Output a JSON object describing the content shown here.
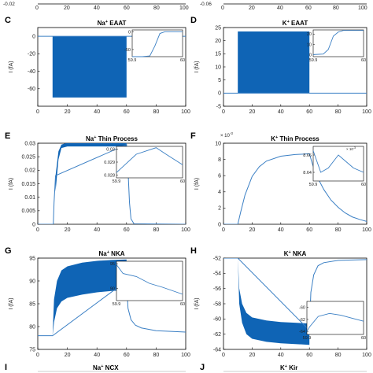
{
  "figure": {
    "top_ticks_left": [
      "0",
      "20",
      "40",
      "60",
      "80",
      "100"
    ],
    "top_ticks_right": [
      "0",
      "20",
      "40",
      "60",
      "80",
      "100"
    ],
    "top_label_left": "-0.02",
    "top_label_right": "-0.06"
  },
  "colors": {
    "series": "#3a7fc4",
    "fill": "#0f64b5",
    "axis": "#000000"
  },
  "chart_data": [
    {
      "id": "C",
      "panel_label": "C",
      "type": "line",
      "title_parts": [
        "Na",
        "+",
        " EAAT"
      ],
      "ylabel": "I (fA)",
      "xlim": [
        0,
        100
      ],
      "ylim": [
        -80,
        10
      ],
      "xticks": [
        0,
        20,
        40,
        60,
        80,
        100
      ],
      "yticks": [
        -60,
        -40,
        -20,
        0
      ],
      "band": {
        "x": [
          10,
          60
        ],
        "y": [
          -70,
          0
        ]
      },
      "baseline": [
        [
          0,
          0
        ],
        [
          10,
          0
        ],
        [
          60,
          0
        ],
        [
          100,
          0
        ]
      ],
      "inset": {
        "xlim": [
          59.9,
          60
        ],
        "ylim": [
          -70,
          5
        ],
        "yticks": [
          -50,
          0
        ],
        "xticks": [
          59.9,
          60
        ],
        "points": [
          [
            59.9,
            -70
          ],
          [
            59.92,
            -70
          ],
          [
            59.935,
            -68
          ],
          [
            59.945,
            -40
          ],
          [
            59.955,
            -5
          ],
          [
            59.965,
            0
          ],
          [
            60,
            0
          ]
        ]
      }
    },
    {
      "id": "D",
      "panel_label": "D",
      "type": "line",
      "title_parts": [
        "K",
        "+",
        " EAAT"
      ],
      "ylabel": "I (fA)",
      "xlim": [
        0,
        100
      ],
      "ylim": [
        -5,
        25
      ],
      "xticks": [
        0,
        20,
        40,
        60,
        80,
        100
      ],
      "yticks": [
        -5,
        0,
        5,
        10,
        15,
        20,
        25
      ],
      "band": {
        "x": [
          10,
          60
        ],
        "y": [
          0,
          23.5
        ]
      },
      "baseline": [
        [
          0,
          0
        ],
        [
          10,
          0
        ],
        [
          60,
          0
        ],
        [
          100,
          0
        ]
      ],
      "inset": {
        "xlim": [
          59.9,
          60
        ],
        "ylim": [
          -2,
          24
        ],
        "yticks": [
          0,
          10,
          20
        ],
        "xticks": [
          59.9,
          60
        ],
        "points": [
          [
            59.9,
            0
          ],
          [
            59.92,
            0.5
          ],
          [
            59.93,
            5
          ],
          [
            59.94,
            18
          ],
          [
            59.95,
            22
          ],
          [
            59.96,
            23.5
          ],
          [
            60,
            23.5
          ]
        ]
      }
    },
    {
      "id": "E",
      "panel_label": "E",
      "type": "line",
      "title_parts": [
        "Na",
        "+",
        " Thin Process"
      ],
      "ylabel": "I (fA)",
      "xlim": [
        0,
        100
      ],
      "ylim": [
        0,
        0.03
      ],
      "xticks": [
        0,
        20,
        40,
        60,
        80,
        100
      ],
      "yticks": [
        0,
        0.005,
        0.01,
        0.015,
        0.02,
        0.025,
        0.03
      ],
      "ytick_labels": [
        "0",
        "0.005",
        "0.01",
        "0.015",
        "0.02",
        "0.025",
        "0.03"
      ],
      "band_points_upper": [
        [
          12,
          0.018
        ],
        [
          14,
          0.027
        ],
        [
          16,
          0.0295
        ],
        [
          20,
          0.0302
        ],
        [
          40,
          0.0302
        ],
        [
          60,
          0.0302
        ]
      ],
      "band_points_lower": [
        [
          12,
          0.012
        ],
        [
          14,
          0.024
        ],
        [
          16,
          0.0282
        ],
        [
          20,
          0.0288
        ],
        [
          40,
          0.0288
        ],
        [
          60,
          0.0288
        ]
      ],
      "line": [
        [
          0,
          0
        ],
        [
          10,
          0
        ],
        [
          10.5,
          0.0
        ],
        [
          11,
          0.008
        ],
        [
          12,
          0.018
        ],
        [
          60,
          0.0295
        ],
        [
          61,
          0.02
        ],
        [
          62,
          0.008
        ],
        [
          63,
          0.002
        ],
        [
          65,
          0.0002
        ],
        [
          100,
          0
        ]
      ],
      "inset": {
        "xlim": [
          59.9,
          60
        ],
        "ylim": [
          0.0278,
          0.0302
        ],
        "yticks": [
          0.028,
          0.029,
          0.03
        ],
        "xticks": [
          59.9,
          60
        ],
        "points": [
          [
            59.9,
            0.0282
          ],
          [
            59.93,
            0.0296
          ],
          [
            59.96,
            0.0301
          ],
          [
            59.975,
            0.0296
          ],
          [
            60,
            0.0288
          ]
        ]
      }
    },
    {
      "id": "F",
      "panel_label": "F",
      "type": "line",
      "title_parts": [
        "K",
        "+",
        " Thin Process"
      ],
      "ylabel": "I (fA)",
      "multiplier": "× 10",
      "multiplier_exp": "-3",
      "xlim": [
        0,
        100
      ],
      "ylim": [
        0,
        10
      ],
      "xticks": [
        0,
        20,
        40,
        60,
        80,
        100
      ],
      "yticks": [
        0,
        2,
        4,
        6,
        8,
        10
      ],
      "line": [
        [
          0,
          0
        ],
        [
          10,
          0
        ],
        [
          12,
          1.5
        ],
        [
          15,
          3.6
        ],
        [
          20,
          5.9
        ],
        [
          25,
          7.1
        ],
        [
          30,
          7.8
        ],
        [
          40,
          8.4
        ],
        [
          50,
          8.6
        ],
        [
          60,
          8.7
        ],
        [
          62,
          7.5
        ],
        [
          65,
          6.0
        ],
        [
          70,
          4.3
        ],
        [
          75,
          3.0
        ],
        [
          80,
          2.1
        ],
        [
          85,
          1.4
        ],
        [
          90,
          0.9
        ],
        [
          95,
          0.6
        ],
        [
          100,
          0.35
        ]
      ],
      "inset": {
        "xlim": [
          59.9,
          60
        ],
        "ylim": [
          8.63,
          8.67
        ],
        "yticks": [
          8.64,
          8.66
        ],
        "xticks": [
          59.9,
          60
        ],
        "ytick_labels": [
          "8.64",
          "8.66"
        ],
        "multiplier": "× 10",
        "multiplier_exp": "-3",
        "points": [
          [
            59.9,
            8.665
          ],
          [
            59.915,
            8.64
          ],
          [
            59.93,
            8.645
          ],
          [
            59.95,
            8.66
          ],
          [
            59.96,
            8.655
          ],
          [
            59.98,
            8.645
          ],
          [
            60,
            8.64
          ]
        ]
      }
    },
    {
      "id": "G",
      "panel_label": "G",
      "type": "line",
      "title_parts": [
        "Na",
        "+",
        " NKA"
      ],
      "ylabel": "I (fA)",
      "xlim": [
        0,
        100
      ],
      "ylim": [
        75,
        95
      ],
      "xticks": [
        0,
        20,
        40,
        60,
        80,
        100
      ],
      "yticks": [
        75,
        80,
        85,
        90,
        95
      ],
      "band_points_upper": [
        [
          10,
          78
        ],
        [
          11,
          86
        ],
        [
          13,
          90
        ],
        [
          16,
          92.3
        ],
        [
          20,
          93.2
        ],
        [
          30,
          94.0
        ],
        [
          40,
          94.4
        ],
        [
          50,
          94.6
        ],
        [
          60,
          94.7
        ]
      ],
      "band_points_lower": [
        [
          10,
          78
        ],
        [
          11,
          81
        ],
        [
          13,
          84
        ],
        [
          16,
          85.5
        ],
        [
          20,
          86.3
        ],
        [
          30,
          87.0
        ],
        [
          40,
          87.5
        ],
        [
          50,
          87.8
        ],
        [
          60,
          88.0
        ]
      ],
      "line": [
        [
          0,
          78
        ],
        [
          10,
          78
        ],
        [
          60,
          90
        ],
        [
          61,
          84
        ],
        [
          63,
          81.5
        ],
        [
          66,
          80.3
        ],
        [
          70,
          79.7
        ],
        [
          80,
          79.1
        ],
        [
          100,
          78.8
        ]
      ],
      "inset": {
        "xlim": [
          59.9,
          60
        ],
        "ylim": [
          87.5,
          95.5
        ],
        "yticks": [
          90,
          95
        ],
        "xticks": [
          59.9,
          60
        ],
        "points": [
          [
            59.9,
            94.8
          ],
          [
            59.91,
            93.0
          ],
          [
            59.93,
            92.4
          ],
          [
            59.95,
            91.0
          ],
          [
            59.97,
            90.2
          ],
          [
            59.985,
            89.5
          ],
          [
            60,
            88.8
          ]
        ]
      }
    },
    {
      "id": "H",
      "panel_label": "H",
      "type": "line",
      "title_parts": [
        "K",
        "+",
        " NKA"
      ],
      "ylabel": "I (fA)",
      "xlim": [
        0,
        100
      ],
      "ylim": [
        -64,
        -52
      ],
      "xticks": [
        0,
        20,
        40,
        60,
        80,
        100
      ],
      "yticks": [
        -64,
        -62,
        -60,
        -58,
        -56,
        -54,
        -52
      ],
      "band_points_upper": [
        [
          10,
          -52
        ],
        [
          11,
          -56
        ],
        [
          13,
          -58
        ],
        [
          16,
          -59.2
        ],
        [
          20,
          -59.8
        ],
        [
          30,
          -60.2
        ],
        [
          40,
          -60.4
        ],
        [
          50,
          -60.5
        ],
        [
          60,
          -60.6
        ]
      ],
      "band_points_lower": [
        [
          10,
          -52
        ],
        [
          11,
          -58
        ],
        [
          13,
          -60.5
        ],
        [
          16,
          -62
        ],
        [
          20,
          -62.6
        ],
        [
          30,
          -63.0
        ],
        [
          40,
          -63.2
        ],
        [
          50,
          -63.3
        ],
        [
          60,
          -63.4
        ]
      ],
      "line": [
        [
          0,
          -52
        ],
        [
          10,
          -52
        ],
        [
          60,
          -61.5
        ],
        [
          61,
          -56.5
        ],
        [
          63,
          -54.2
        ],
        [
          66,
          -53.0
        ],
        [
          70,
          -52.6
        ],
        [
          80,
          -52.3
        ],
        [
          100,
          -52.2
        ]
      ],
      "inset": {
        "xlim": [
          59.9,
          60
        ],
        "ylim": [
          -64.5,
          -59
        ],
        "yticks": [
          -64,
          -62,
          -60
        ],
        "xticks": [
          59.9,
          60
        ],
        "points": [
          [
            59.9,
            -64
          ],
          [
            59.905,
            -63.2
          ],
          [
            59.92,
            -61.5
          ],
          [
            59.94,
            -61.0
          ],
          [
            59.96,
            -61.3
          ],
          [
            59.98,
            -61.8
          ],
          [
            60,
            -62.3
          ]
        ]
      }
    }
  ],
  "bottom_panels": [
    {
      "label": "I",
      "title_parts": [
        "Na",
        "+",
        " NCX"
      ]
    },
    {
      "label": "J",
      "title_parts": [
        "K",
        "+",
        " Kir"
      ]
    }
  ]
}
